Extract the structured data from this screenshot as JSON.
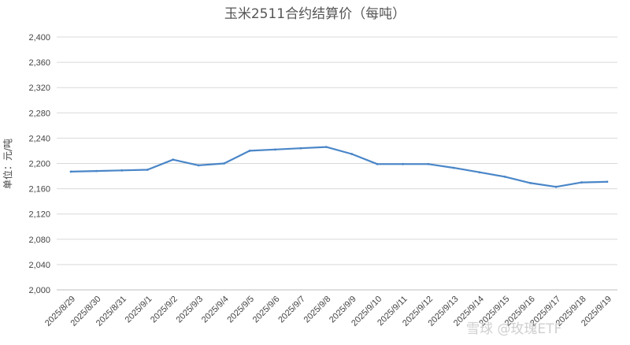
{
  "chart_data": {
    "type": "line",
    "title": "玉米2511合约结算价（每吨）",
    "ylabel": "单位：元/吨",
    "xlabel": "",
    "ylim": [
      2000,
      2400
    ],
    "yticks": [
      2000,
      2040,
      2080,
      2120,
      2160,
      2200,
      2240,
      2280,
      2320,
      2360,
      2400
    ],
    "ytick_labels": [
      "2,000",
      "2,040",
      "2,080",
      "2,120",
      "2,160",
      "2,200",
      "2,240",
      "2,280",
      "2,320",
      "2,360",
      "2,400"
    ],
    "categories": [
      "2025/8/29",
      "2025/8/30",
      "2025/8/31",
      "2025/9/1",
      "2025/9/2",
      "2025/9/3",
      "2025/9/4",
      "2025/9/5",
      "2025/9/6",
      "2025/9/7",
      "2025/9/8",
      "2025/9/9",
      "2025/9/10",
      "2025/9/11",
      "2025/9/12",
      "2025/9/13",
      "2025/9/14",
      "2025/9/15",
      "2025/9/16",
      "2025/9/17",
      "2025/9/18",
      "2025/9/19"
    ],
    "series": [
      {
        "values": [
          2187,
          2188,
          2189,
          2190,
          2206,
          2197,
          2200,
          2220,
          2222,
          2224,
          2226,
          2215,
          2199,
          2199,
          2199,
          2193,
          2186,
          2179,
          2169,
          2163,
          2170,
          2171
        ],
        "color": "#4a86c8"
      }
    ],
    "grid": true,
    "legend": "none"
  },
  "watermark": "雪球 @玫瑰ETF"
}
